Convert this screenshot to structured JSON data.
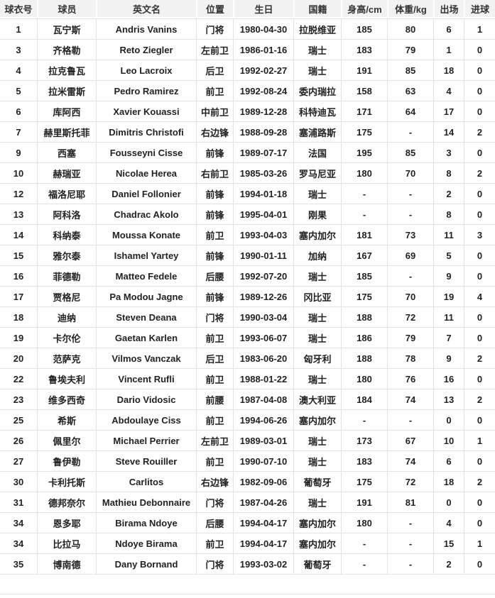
{
  "colors": {
    "header_bg": "#f2f2f2",
    "row_bg": "#ffffff",
    "border": "#e3e3e3",
    "header_text": "#333333",
    "cell_text": "#222222"
  },
  "table": {
    "columns": [
      "球衣号",
      "球员",
      "英文名",
      "位置",
      "生日",
      "国籍",
      "身高/cm",
      "体重/kg",
      "出场",
      "进球"
    ],
    "column_keys": [
      "jersey-number",
      "player-name",
      "english-name",
      "position",
      "birthday",
      "nationality",
      "height",
      "weight",
      "appearances",
      "goals"
    ],
    "rows": [
      [
        "1",
        "瓦宁斯",
        "Andris Vanins",
        "门将",
        "1980-04-30",
        "拉脱维亚",
        "185",
        "80",
        "6",
        "1"
      ],
      [
        "3",
        "齐格勒",
        "Reto Ziegler",
        "左前卫",
        "1986-01-16",
        "瑞士",
        "183",
        "79",
        "1",
        "0"
      ],
      [
        "4",
        "拉克鲁瓦",
        "Leo Lacroix",
        "后卫",
        "1992-02-27",
        "瑞士",
        "191",
        "85",
        "18",
        "0"
      ],
      [
        "5",
        "拉米雷斯",
        "Pedro Ramirez",
        "前卫",
        "1992-08-24",
        "委内瑞拉",
        "158",
        "63",
        "4",
        "0"
      ],
      [
        "6",
        "库阿西",
        "Xavier Kouassi",
        "中前卫",
        "1989-12-28",
        "科特迪瓦",
        "171",
        "64",
        "17",
        "0"
      ],
      [
        "7",
        "赫里斯托菲",
        "Dimitris Christofi",
        "右边锋",
        "1988-09-28",
        "塞浦路斯",
        "175",
        "-",
        "14",
        "2"
      ],
      [
        "9",
        "西塞",
        "Fousseyni Cisse",
        "前锋",
        "1989-07-17",
        "法国",
        "195",
        "85",
        "3",
        "0"
      ],
      [
        "10",
        "赫瑞亚",
        "Nicolae Herea",
        "右前卫",
        "1985-03-26",
        "罗马尼亚",
        "180",
        "70",
        "8",
        "2"
      ],
      [
        "12",
        "福洛尼耶",
        "Daniel Follonier",
        "前锋",
        "1994-01-18",
        "瑞士",
        "-",
        "-",
        "2",
        "0"
      ],
      [
        "13",
        "阿科洛",
        "Chadrac Akolo",
        "前锋",
        "1995-04-01",
        "刚果",
        "-",
        "-",
        "8",
        "0"
      ],
      [
        "14",
        "科纳泰",
        "Moussa Konate",
        "前卫",
        "1993-04-03",
        "塞内加尔",
        "181",
        "73",
        "11",
        "3"
      ],
      [
        "15",
        "雅尔泰",
        "Ishamel Yartey",
        "前锋",
        "1990-01-11",
        "加纳",
        "167",
        "69",
        "5",
        "0"
      ],
      [
        "16",
        "菲德勒",
        "Matteo Fedele",
        "后腰",
        "1992-07-20",
        "瑞士",
        "185",
        "-",
        "9",
        "0"
      ],
      [
        "17",
        "贾格尼",
        "Pa Modou Jagne",
        "前锋",
        "1989-12-26",
        "冈比亚",
        "175",
        "70",
        "19",
        "4"
      ],
      [
        "18",
        "迪纳",
        "Steven Deana",
        "门将",
        "1990-03-04",
        "瑞士",
        "188",
        "72",
        "11",
        "0"
      ],
      [
        "19",
        "卡尔伦",
        "Gaetan Karlen",
        "前卫",
        "1993-06-07",
        "瑞士",
        "186",
        "79",
        "7",
        "0"
      ],
      [
        "20",
        "范萨克",
        "Vilmos Vanczak",
        "后卫",
        "1983-06-20",
        "匈牙利",
        "188",
        "78",
        "9",
        "2"
      ],
      [
        "22",
        "鲁埃夫利",
        "Vincent Rufli",
        "前卫",
        "1988-01-22",
        "瑞士",
        "180",
        "76",
        "16",
        "0"
      ],
      [
        "23",
        "维多西奇",
        "Dario Vidosic",
        "前腰",
        "1987-04-08",
        "澳大利亚",
        "184",
        "74",
        "13",
        "2"
      ],
      [
        "25",
        "希斯",
        "Abdoulaye Ciss",
        "前卫",
        "1994-06-26",
        "塞内加尔",
        "-",
        "-",
        "0",
        "0"
      ],
      [
        "26",
        "佩里尔",
        "Michael Perrier",
        "左前卫",
        "1989-03-01",
        "瑞士",
        "173",
        "67",
        "10",
        "1"
      ],
      [
        "27",
        "鲁伊勒",
        "Steve Rouiller",
        "前卫",
        "1990-07-10",
        "瑞士",
        "183",
        "74",
        "6",
        "0"
      ],
      [
        "30",
        "卡利托斯",
        "Carlitos",
        "右边锋",
        "1982-09-06",
        "葡萄牙",
        "175",
        "72",
        "18",
        "2"
      ],
      [
        "31",
        "德邦奈尔",
        "Mathieu Debonnaire",
        "门将",
        "1987-04-26",
        "瑞士",
        "191",
        "81",
        "0",
        "0"
      ],
      [
        "34",
        "恩多耶",
        "Birama Ndoye",
        "后腰",
        "1994-04-17",
        "塞内加尔",
        "180",
        "-",
        "4",
        "0"
      ],
      [
        "34",
        "比拉马",
        "Ndoye Birama",
        "前卫",
        "1994-04-17",
        "塞内加尔",
        "-",
        "-",
        "15",
        "1"
      ],
      [
        "35",
        "博南德",
        "Dany Bornand",
        "门将",
        "1993-03-02",
        "葡萄牙",
        "-",
        "-",
        "2",
        "0"
      ]
    ]
  }
}
